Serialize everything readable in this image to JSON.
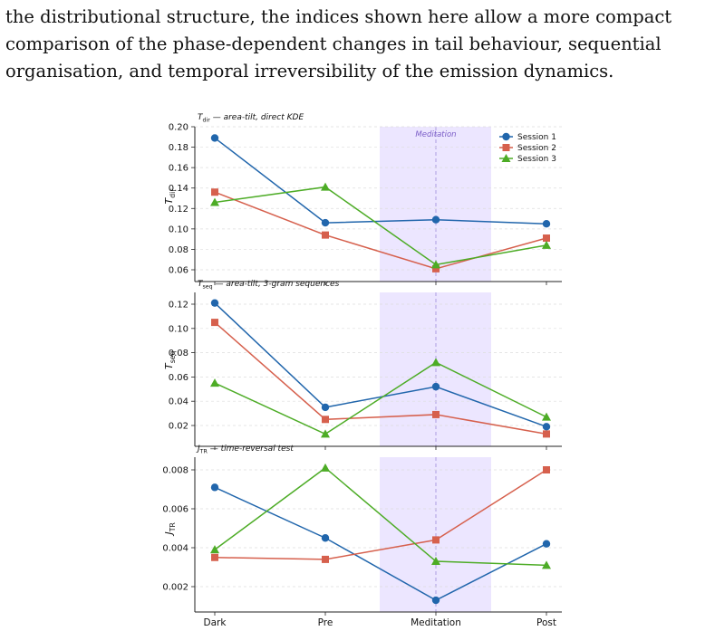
{
  "text_block": {
    "lines": [
      "the distributional structure, the indices shown here allow a more compact",
      "comparison of the phase-dependent changes in tail behaviour, sequential",
      "organisation, and temporal irreversibility of the emission dynamics."
    ]
  },
  "colors": {
    "session1": "#2166ac",
    "session2": "#d6604d",
    "session3": "#4dac26",
    "shade": "#ece6ff",
    "shade_line": "#9b8bd9",
    "annotation": "#7a5cc7"
  },
  "chart_data": [
    {
      "type": "line",
      "title": "T_dir — area-tilt, direct KDE",
      "ylabel": "T_dir",
      "categories": [
        "Dark",
        "Pre",
        "Meditation",
        "Post"
      ],
      "ylim": [
        0.05,
        0.2
      ],
      "yticks": [
        0.06,
        0.08,
        0.1,
        0.12,
        0.14,
        0.16,
        0.18,
        0.2
      ],
      "tick_decimals": 2,
      "shaded_region": "Meditation",
      "annotation": "Meditation",
      "legend": "top-right",
      "grid": true,
      "series": [
        {
          "name": "Session 1",
          "marker": "circle",
          "values": [
            0.189,
            0.106,
            0.109,
            0.105
          ]
        },
        {
          "name": "Session 2",
          "marker": "square",
          "values": [
            0.136,
            0.094,
            0.061,
            0.091
          ]
        },
        {
          "name": "Session 3",
          "marker": "triangle",
          "values": [
            0.126,
            0.141,
            0.065,
            0.084
          ]
        }
      ]
    },
    {
      "type": "line",
      "title": "T_seq — area-tilt, 3-gram sequences",
      "ylabel": "T_seq",
      "categories": [
        "Dark",
        "Pre",
        "Meditation",
        "Post"
      ],
      "ylim": [
        0.005,
        0.132
      ],
      "yticks": [
        0.02,
        0.04,
        0.06,
        0.08,
        0.1,
        0.12
      ],
      "tick_decimals": 2,
      "shaded_region": "Meditation",
      "grid": true,
      "series": [
        {
          "name": "Session 1",
          "marker": "circle",
          "values": [
            0.121,
            0.035,
            0.052,
            0.019
          ]
        },
        {
          "name": "Session 2",
          "marker": "square",
          "values": [
            0.105,
            0.025,
            0.029,
            0.013
          ]
        },
        {
          "name": "Session 3",
          "marker": "triangle",
          "values": [
            0.055,
            0.013,
            0.072,
            0.027
          ]
        }
      ]
    },
    {
      "type": "line",
      "title": "J_TR — time-reversal test",
      "ylabel": "J_TR",
      "categories": [
        "Dark",
        "Pre",
        "Meditation",
        "Post"
      ],
      "ylim": [
        0.001,
        0.0087
      ],
      "yticks": [
        0.002,
        0.004,
        0.006,
        0.008
      ],
      "tick_decimals": 3,
      "shaded_region": "Meditation",
      "grid": true,
      "series": [
        {
          "name": "Session 1",
          "marker": "circle",
          "values": [
            0.0071,
            0.0045,
            0.0013,
            0.0042
          ]
        },
        {
          "name": "Session 2",
          "marker": "square",
          "values": [
            0.0035,
            0.0034,
            0.0044,
            0.008
          ]
        },
        {
          "name": "Session 3",
          "marker": "triangle",
          "values": [
            0.0039,
            0.0081,
            0.0033,
            0.0031
          ]
        }
      ]
    }
  ]
}
